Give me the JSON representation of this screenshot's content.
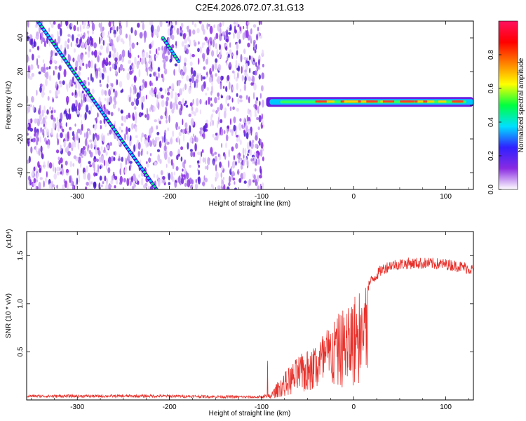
{
  "title": "C2E4.2026.072.07.31.G13",
  "chart_data": [
    {
      "type": "heatmap",
      "xlabel": "Height of straight line (km)",
      "ylabel": "Frequency (Hz)",
      "xlim": [
        -355,
        130
      ],
      "ylim": [
        -50,
        50
      ],
      "xticks": [
        -300,
        -200,
        -100,
        0,
        100
      ],
      "yticks": [
        -40,
        -20,
        0,
        20,
        40
      ],
      "colorbar": {
        "label": "Normalized spectral amplitude",
        "range": [
          0,
          1
        ],
        "ticks": [
          "0.0",
          "0.2",
          "0.4",
          "0.6",
          "0.8"
        ],
        "colors": [
          "#ffffff",
          "#8a2be2",
          "#3020ff",
          "#00e0ff",
          "#00ff40",
          "#ffff00",
          "#ff8000",
          "#ff0000",
          "#ff1060"
        ]
      },
      "features": [
        {
          "name": "descending streak",
          "x": [
            -343,
            -214
          ],
          "y": [
            50,
            -50
          ]
        },
        {
          "name": "secondary streak",
          "x": [
            -207,
            -190
          ],
          "y": [
            40,
            26
          ]
        },
        {
          "name": "tone line",
          "x": [
            -95,
            130
          ],
          "y": [
            2,
            2
          ]
        }
      ],
      "noise_region_x": [
        -355,
        -98
      ]
    },
    {
      "type": "line",
      "xlabel": "Height of straight line (km)",
      "ylabel": "SNR (10 * v/v)",
      "y_multiplier": "(x10⁴)",
      "xlim": [
        -355,
        130
      ],
      "ylim": [
        0,
        1.75
      ],
      "xticks": [
        -300,
        -200,
        -100,
        0,
        100
      ],
      "yticks": [
        "0.5",
        "1.0",
        "1.5"
      ],
      "line_color": "#e8302a",
      "series_x": [
        -355,
        -300,
        -200,
        -110,
        -100,
        -90,
        -80,
        -70,
        -60,
        -50,
        -40,
        -30,
        -20,
        -10,
        0,
        10,
        20,
        30,
        40,
        60,
        80,
        100,
        120,
        130
      ],
      "series_y": [
        0.04,
        0.04,
        0.04,
        0.03,
        0.03,
        0.06,
        0.2,
        0.3,
        0.4,
        0.45,
        0.55,
        0.65,
        0.75,
        0.85,
        0.95,
        1.1,
        1.25,
        1.35,
        1.4,
        1.42,
        1.42,
        1.41,
        1.38,
        1.35
      ]
    }
  ]
}
